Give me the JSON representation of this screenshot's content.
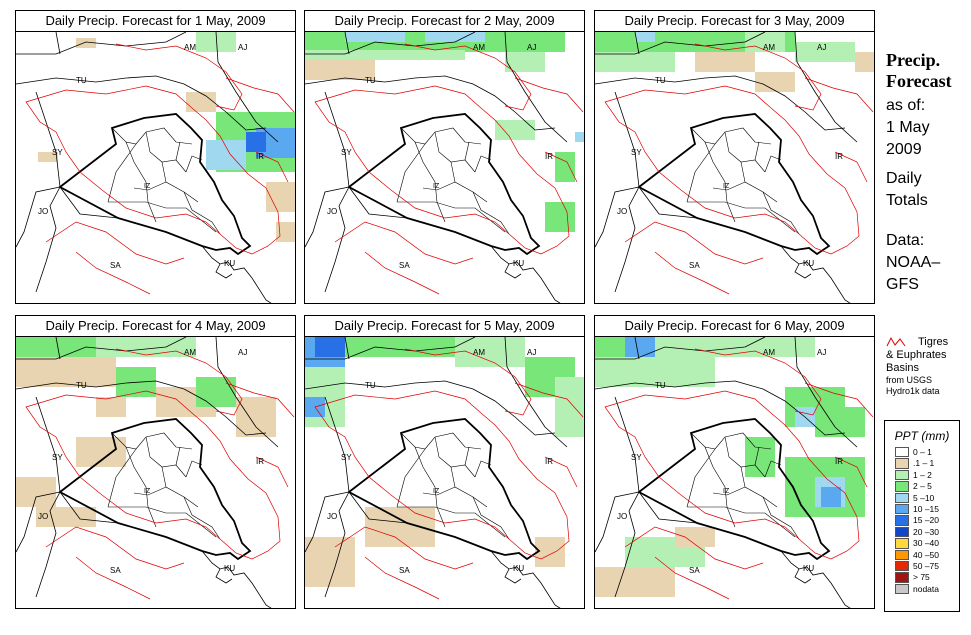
{
  "panels": [
    {
      "title": "Daily Precip. Forecast for  1 May, 2009"
    },
    {
      "title": "Daily Precip. Forecast for  2 May, 2009"
    },
    {
      "title": "Daily Precip. Forecast for  3 May, 2009"
    },
    {
      "title": "Daily Precip. Forecast for  4 May, 2009"
    },
    {
      "title": "Daily Precip. Forecast for  5 May, 2009"
    },
    {
      "title": "Daily Precip. Forecast for  6 May, 2009"
    }
  ],
  "country_labels": {
    "am": "AM",
    "aj": "AJ",
    "tu": "TU",
    "sy": "SY",
    "ir": "IR",
    "jo": "JO",
    "sa": "SA",
    "ku": "KU",
    "iz": "IZ"
  },
  "side": {
    "title_line1": "Precip.",
    "title_line2": "Forecast",
    "asof": "as of:",
    "date_line1": "1 May",
    "date_line2": "2009",
    "daily_line1": "Daily",
    "daily_line2": "Totals",
    "data_line1": "Data:",
    "data_line2": "NOAA–",
    "data_line3": "GFS"
  },
  "basin_note": {
    "line1": "Tigres",
    "line2": "& Euphrates",
    "line3": "Basins",
    "line4": "from USGS",
    "line5": "Hydro1k data"
  },
  "legend": {
    "title": "PPT (mm)",
    "items": [
      {
        "label": "0 – 1",
        "color": "#ffffff"
      },
      {
        "label": ".1 – 1",
        "color": "#e8d4b0"
      },
      {
        "label": "1 – 2",
        "color": "#b4f0b4"
      },
      {
        "label": "2 – 5",
        "color": "#78e678"
      },
      {
        "label": "5 –10",
        "color": "#a0d8f0"
      },
      {
        "label": "10 –15",
        "color": "#5aa8f0"
      },
      {
        "label": "15 –20",
        "color": "#2870e6"
      },
      {
        "label": "20 –30",
        "color": "#1446c8"
      },
      {
        "label": "30 –40",
        "color": "#ffd840"
      },
      {
        "label": "40 –50",
        "color": "#ff9800"
      },
      {
        "label": "50 –75",
        "color": "#e62800"
      },
      {
        "label": "> 75",
        "color": "#a01414"
      },
      {
        "label": "nodata",
        "color": "#c8c8c8"
      }
    ]
  }
}
